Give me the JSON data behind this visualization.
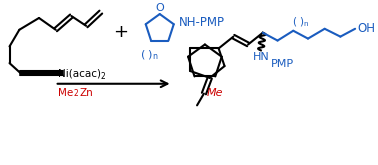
{
  "background": "#ffffff",
  "black": "#000000",
  "blue": "#1a5cbf",
  "red": "#cc0000",
  "figsize": [
    3.78,
    1.65
  ],
  "dpi": 100,
  "lw": 1.5,
  "o_label": "O",
  "nh_pmp": "NH-PMP",
  "hn_label": "HN",
  "pmp_label": "PMP",
  "oh_label": "OH",
  "me_label": "Me",
  "ni_label": "Ni(acac)",
  "ni_sub": "2",
  "me2zn_label": "Me",
  "me2zn_sub": "2",
  "me2zn_end": "Zn"
}
